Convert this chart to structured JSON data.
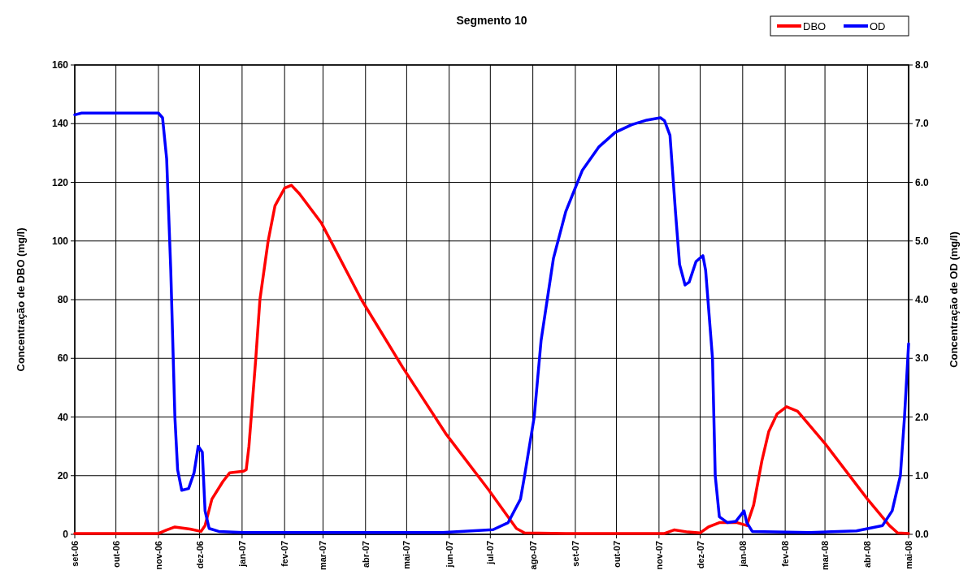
{
  "chart_data": {
    "type": "line",
    "title": "Segmento 10",
    "ylabel": "Concentração de DBO (mg/l)",
    "y2label": "Concentração de OD (mg/l)",
    "xlim": [
      "2006-09-01",
      "2008-05-01"
    ],
    "xticks": [
      {
        "value": "2006-09-01",
        "label": "set-06"
      },
      {
        "value": "2006-10-01",
        "label": "out-06"
      },
      {
        "value": "2006-11-01",
        "label": "nov-06"
      },
      {
        "value": "2006-12-01",
        "label": "dez-06"
      },
      {
        "value": "2007-01-01",
        "label": "jan-07"
      },
      {
        "value": "2007-02-01",
        "label": "fev-07"
      },
      {
        "value": "2007-03-01",
        "label": "mar-07"
      },
      {
        "value": "2007-04-01",
        "label": "abr-07"
      },
      {
        "value": "2007-05-01",
        "label": "mai-07"
      },
      {
        "value": "2007-06-01",
        "label": "jun-07"
      },
      {
        "value": "2007-07-01",
        "label": "jul-07"
      },
      {
        "value": "2007-08-01",
        "label": "ago-07"
      },
      {
        "value": "2007-09-01",
        "label": "set-07"
      },
      {
        "value": "2007-10-01",
        "label": "out-07"
      },
      {
        "value": "2007-11-01",
        "label": "nov-07"
      },
      {
        "value": "2007-12-01",
        "label": "dez-07"
      },
      {
        "value": "2008-01-01",
        "label": "jan-08"
      },
      {
        "value": "2008-02-01",
        "label": "fev-08"
      },
      {
        "value": "2008-03-01",
        "label": "mar-08"
      },
      {
        "value": "2008-04-01",
        "label": "abr-08"
      },
      {
        "value": "2008-05-01",
        "label": "mai-08"
      }
    ],
    "ylim": [
      0,
      160
    ],
    "yticks": [
      0,
      20,
      40,
      60,
      80,
      100,
      120,
      140,
      160
    ],
    "y2lim": [
      0,
      8
    ],
    "y2ticks": [
      {
        "value": 0,
        "label": "0.0"
      },
      {
        "value": 1,
        "label": "1.0"
      },
      {
        "value": 2,
        "label": "2.0"
      },
      {
        "value": 3,
        "label": "3.0"
      },
      {
        "value": 4,
        "label": "4.0"
      },
      {
        "value": 5,
        "label": "5.0"
      },
      {
        "value": 6,
        "label": "6.0"
      },
      {
        "value": 7,
        "label": "7.0"
      },
      {
        "value": 8,
        "label": "8.0"
      }
    ],
    "grid": true,
    "legend": "top right",
    "marker": "none",
    "line_style": "solid",
    "series": [
      {
        "name": "DBO",
        "color": "#ff0000",
        "x": [
          "2006-09-01",
          "2006-11-01",
          "2006-11-07",
          "2006-11-13",
          "2006-11-24",
          "2006-12-02",
          "2006-12-05",
          "2006-12-10",
          "2006-12-18",
          "2006-12-23",
          "2007-01-02",
          "2007-01-04",
          "2007-01-06",
          "2007-01-11",
          "2007-01-14",
          "2007-01-20",
          "2007-01-25",
          "2007-02-01",
          "2007-02-06",
          "2007-02-12",
          "2007-02-28",
          "2007-03-29",
          "2007-04-28",
          "2007-05-30",
          "2007-06-30",
          "2007-07-20",
          "2007-07-26",
          "2007-08-25",
          "2007-11-05",
          "2007-11-12",
          "2007-11-22",
          "2007-12-01",
          "2007-12-07",
          "2007-12-15",
          "2007-12-28",
          "2008-01-04",
          "2008-01-09",
          "2008-01-15",
          "2008-01-20",
          "2008-01-26",
          "2008-02-02",
          "2008-02-10",
          "2008-03-01",
          "2008-04-01",
          "2008-04-17",
          "2008-04-23",
          "2008-05-01"
        ],
        "values": [
          0.3,
          0.3,
          1.5,
          2.5,
          1.8,
          1,
          3,
          12,
          18,
          21,
          21.5,
          22,
          30,
          60,
          80,
          100,
          112,
          118,
          119,
          116,
          106,
          80,
          57,
          34,
          15,
          2,
          0.5,
          0.3,
          0.3,
          1.5,
          0.8,
          0.5,
          2.5,
          4,
          4,
          3,
          10,
          25,
          35,
          41,
          43.5,
          42,
          31,
          12,
          3,
          0.5,
          0.3
        ]
      },
      {
        "name": "OD",
        "color": "#0000ff",
        "axis": "y2",
        "x": [
          "2006-09-01",
          "2006-09-06",
          "2006-11-01",
          "2006-11-04",
          "2006-11-07",
          "2006-11-10",
          "2006-11-13",
          "2006-11-15",
          "2006-11-18",
          "2006-11-23",
          "2006-11-27",
          "2006-11-30",
          "2006-12-03",
          "2006-12-05",
          "2006-12-08",
          "2006-12-15",
          "2007-01-02",
          "2007-05-27",
          "2007-07-03",
          "2007-07-14",
          "2007-07-23",
          "2007-07-26",
          "2007-08-02",
          "2007-08-07",
          "2007-08-16",
          "2007-08-25",
          "2007-09-06",
          "2007-09-18",
          "2007-09-30",
          "2007-10-12",
          "2007-10-23",
          "2007-11-02",
          "2007-11-05",
          "2007-11-09",
          "2007-11-13",
          "2007-11-16",
          "2007-11-20",
          "2007-11-23",
          "2007-11-28",
          "2007-12-03",
          "2007-12-05",
          "2007-12-10",
          "2007-12-12",
          "2007-12-15",
          "2007-12-21",
          "2007-12-27",
          "2008-01-02",
          "2008-01-04",
          "2008-01-08",
          "2008-02-19",
          "2008-03-24",
          "2008-04-12",
          "2008-04-19",
          "2008-04-25",
          "2008-04-28",
          "2008-05-01"
        ],
        "values": [
          7.15,
          7.18,
          7.18,
          7.1,
          6.4,
          4.5,
          2.0,
          1.1,
          0.75,
          0.78,
          1.05,
          1.5,
          1.4,
          0.4,
          0.1,
          0.05,
          0.03,
          0.03,
          0.08,
          0.2,
          0.6,
          1.0,
          2.0,
          3.3,
          4.7,
          5.5,
          6.2,
          6.6,
          6.85,
          6.98,
          7.06,
          7.1,
          7.05,
          6.8,
          5.5,
          4.6,
          4.25,
          4.3,
          4.65,
          4.75,
          4.5,
          3.0,
          1.0,
          0.3,
          0.2,
          0.22,
          0.4,
          0.2,
          0.05,
          0.03,
          0.06,
          0.15,
          0.4,
          1.0,
          2.0,
          3.25
        ]
      }
    ]
  }
}
